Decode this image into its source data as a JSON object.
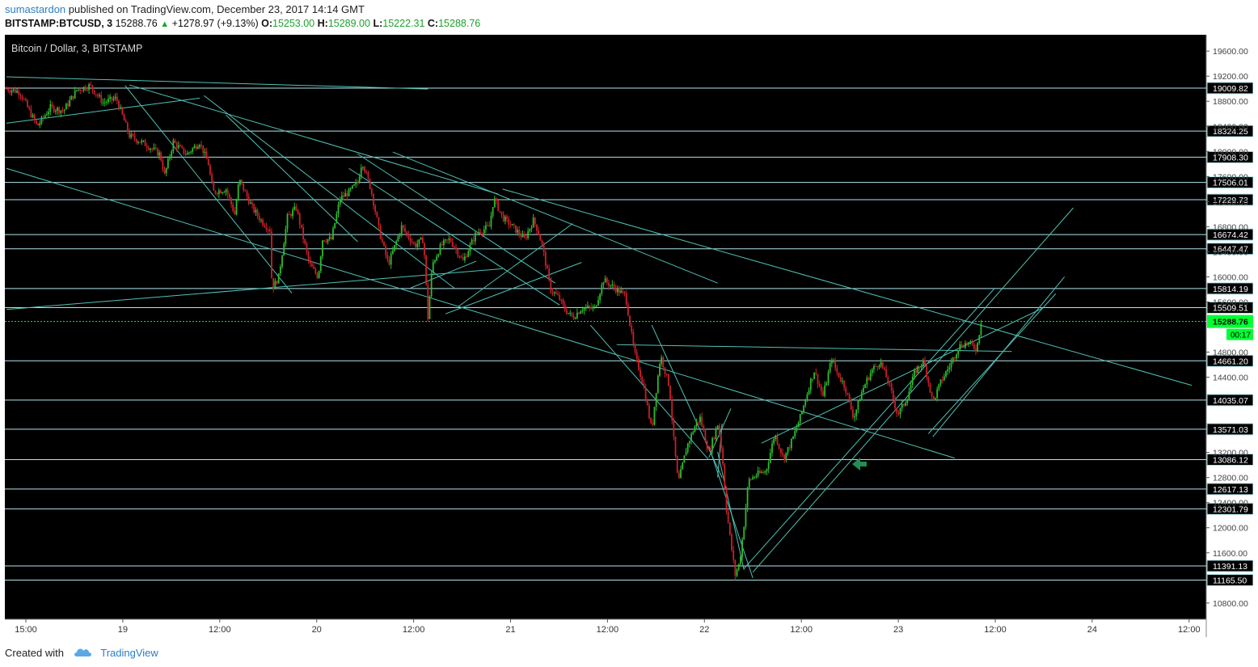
{
  "header": {
    "author": "sumastardon",
    "published_text": "published on TradingView.com, December 23, 2017 14:14 GMT",
    "symbol": "BITSTAMP:BTCUSD, 3",
    "last": "15288.76",
    "change_arrow": "▲",
    "change": "+1278.97 (+9.13%)",
    "open_label": "O:",
    "open": "15253.00",
    "high_label": "H:",
    "high": "15289.00",
    "low_label": "L:",
    "low": "15222.31",
    "close_label": "C:",
    "close": "15288.76"
  },
  "footer": {
    "created_with": "Created with",
    "brand": "TradingView",
    "logo_icon": "tradingview-cloud-icon"
  },
  "colors": {
    "background": "#000000",
    "trendline": "#4fc2b6",
    "level_line": "#b0e4ea",
    "candle_up": "#2dbb2d",
    "candle_down": "#c8202a",
    "current_price": "#00ff33",
    "arrow": "#238d52",
    "axis_bg": "#ffffff"
  },
  "chart_data": {
    "type": "candlestick",
    "title": "Bitcoin / Dollar, 3, BITSTAMP",
    "ylim": [
      10540,
      19860
    ],
    "y_axis_ticks": [
      "19600.00",
      "19200.00",
      "18800.00",
      "18400.00",
      "18000.00",
      "17600.00",
      "17200.00",
      "16800.00",
      "16400.00",
      "16000.00",
      "15600.00",
      "14800.00",
      "14400.00",
      "13200.00",
      "12800.00",
      "12400.00",
      "12000.00",
      "11600.00",
      "10800.00"
    ],
    "x_axis_ticks": [
      "15:00",
      "19",
      "12:00",
      "20",
      "12:00",
      "21",
      "12:00",
      "22",
      "12:00",
      "23",
      "12:00",
      "24",
      "12:00"
    ],
    "level_labels": [
      "19009.82",
      "18324.25",
      "17908.30",
      "17506.01",
      "17229.73",
      "16674.42",
      "16447.47",
      "15814.19",
      "15509.51",
      "14661.20",
      "14035.07",
      "13571.03",
      "13086.12",
      "12617.13",
      "12301.79",
      "11391.13",
      "11165.50"
    ],
    "current_price": "15288.76",
    "countdown": "00:17",
    "price_path": [
      [
        0,
        19000
      ],
      [
        3,
        18950
      ],
      [
        7,
        18400
      ],
      [
        10,
        18700
      ],
      [
        13,
        18650
      ],
      [
        16,
        18980
      ],
      [
        19,
        19050
      ],
      [
        22,
        18780
      ],
      [
        25,
        18850
      ],
      [
        28,
        18250
      ],
      [
        32,
        18100
      ],
      [
        35,
        17950
      ],
      [
        36,
        17620
      ],
      [
        38,
        18150
      ],
      [
        41,
        17950
      ],
      [
        44,
        18150
      ],
      [
        46,
        17800
      ],
      [
        47,
        17350
      ],
      [
        50,
        17400
      ],
      [
        52,
        17000
      ],
      [
        53,
        17550
      ],
      [
        56,
        17100
      ],
      [
        58,
        16900
      ],
      [
        60,
        16750
      ],
      [
        60.5,
        15800
      ],
      [
        62,
        16000
      ],
      [
        64,
        16950
      ],
      [
        66,
        17100
      ],
      [
        69,
        16200
      ],
      [
        71,
        16000
      ],
      [
        72,
        16600
      ],
      [
        74,
        16600
      ],
      [
        76,
        17250
      ],
      [
        78,
        17350
      ],
      [
        80,
        17500
      ],
      [
        81,
        17850
      ],
      [
        83,
        17400
      ],
      [
        85,
        16700
      ],
      [
        87,
        16200
      ],
      [
        90,
        16800
      ],
      [
        93,
        16500
      ],
      [
        95,
        16600
      ],
      [
        96,
        15350
      ],
      [
        97,
        16200
      ],
      [
        99,
        16500
      ],
      [
        101,
        16600
      ],
      [
        104,
        16250
      ],
      [
        107,
        16700
      ],
      [
        110,
        16800
      ],
      [
        111,
        17250
      ],
      [
        113,
        16950
      ],
      [
        116,
        16750
      ],
      [
        118,
        16600
      ],
      [
        120,
        16900
      ],
      [
        121,
        16750
      ],
      [
        122,
        16500
      ],
      [
        124,
        15800
      ],
      [
        126,
        15650
      ],
      [
        127,
        15500
      ],
      [
        129,
        15350
      ],
      [
        131,
        15500
      ],
      [
        134,
        15500
      ],
      [
        136,
        15950
      ],
      [
        138,
        15850
      ],
      [
        141,
        15700
      ],
      [
        143,
        14800
      ],
      [
        145,
        14300
      ],
      [
        147,
        13550
      ],
      [
        148,
        14200
      ],
      [
        149,
        14750
      ],
      [
        151,
        14250
      ],
      [
        152,
        13400
      ],
      [
        153,
        12700
      ],
      [
        155,
        13300
      ],
      [
        157,
        13650
      ],
      [
        158,
        13750
      ],
      [
        160,
        13200
      ],
      [
        162,
        13650
      ],
      [
        163,
        13200
      ],
      [
        164,
        12300
      ],
      [
        165,
        11750
      ],
      [
        166,
        11250
      ],
      [
        167,
        11450
      ],
      [
        168,
        12050
      ],
      [
        169,
        12750
      ],
      [
        171,
        12850
      ],
      [
        173,
        12900
      ],
      [
        175,
        13500
      ],
      [
        177,
        13100
      ],
      [
        179,
        13400
      ],
      [
        181,
        13800
      ],
      [
        183,
        14300
      ],
      [
        184,
        14500
      ],
      [
        186,
        14100
      ],
      [
        188,
        14700
      ],
      [
        189,
        14500
      ],
      [
        191,
        14250
      ],
      [
        193,
        13750
      ],
      [
        195,
        14200
      ],
      [
        197,
        14500
      ],
      [
        199,
        14650
      ],
      [
        201,
        14300
      ],
      [
        203,
        13800
      ],
      [
        205,
        14050
      ],
      [
        207,
        14500
      ],
      [
        209,
        14650
      ],
      [
        211,
        14000
      ],
      [
        213,
        14350
      ],
      [
        215,
        14600
      ],
      [
        217,
        14900
      ],
      [
        219,
        14950
      ],
      [
        221,
        14850
      ],
      [
        222,
        15290
      ]
    ]
  }
}
